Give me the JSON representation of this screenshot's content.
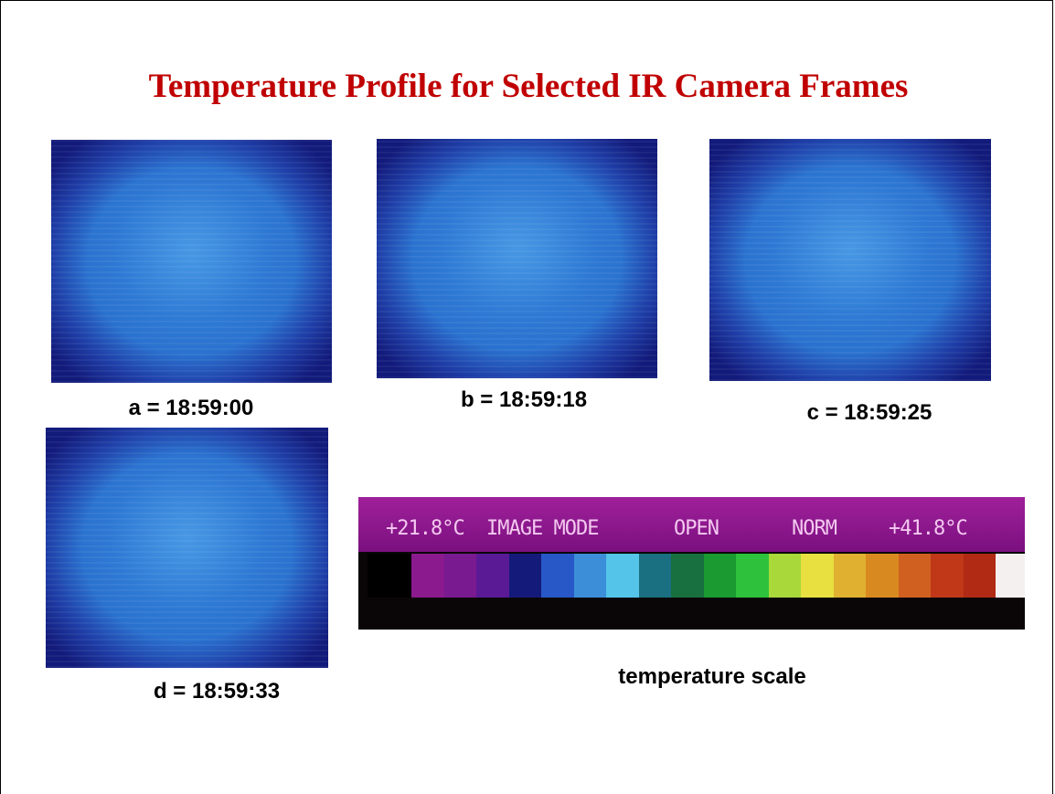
{
  "title": "Temperature Profile for Selected IR Camera Frames",
  "frames": [
    {
      "label": "a = 18:59:00"
    },
    {
      "label": "b = 18:59:18"
    },
    {
      "label": "c = 18:59:25"
    },
    {
      "label": "d = 18:59:33"
    }
  ],
  "scale": {
    "caption": "temperature scale",
    "readout": [
      "+21.8°C",
      "IMAGE MODE",
      "OPEN",
      "NORM",
      "+41.8°C"
    ]
  }
}
